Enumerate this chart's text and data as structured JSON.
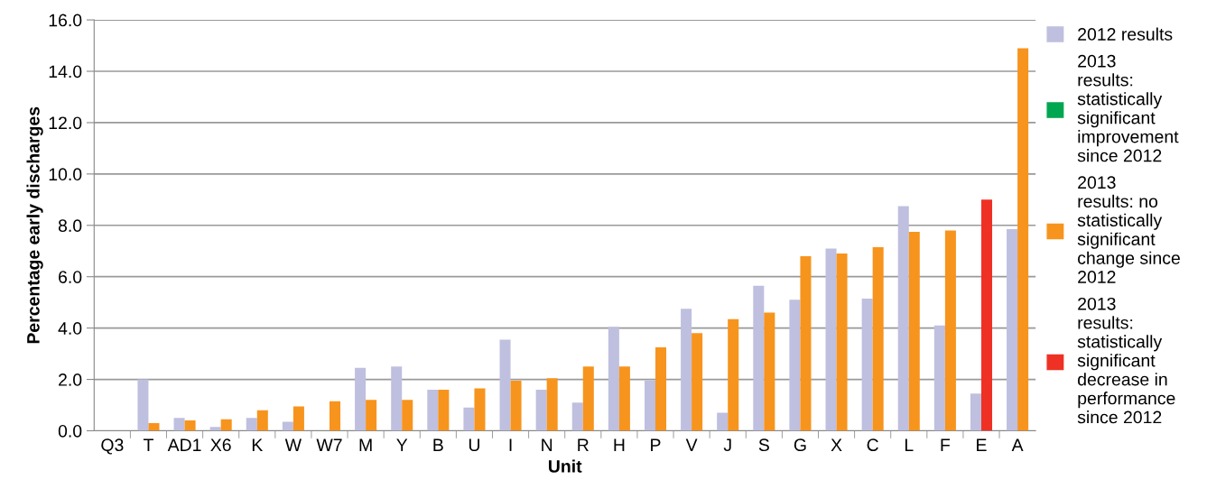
{
  "chart_data": {
    "type": "bar",
    "xlabel": "Unit",
    "ylabel": "Percentage early discharges",
    "categories": [
      "Q3",
      "T",
      "AD1",
      "X6",
      "K",
      "W",
      "W7",
      "M",
      "Y",
      "B",
      "U",
      "I",
      "N",
      "R",
      "H",
      "P",
      "V",
      "J",
      "S",
      "G",
      "X",
      "C",
      "L",
      "F",
      "E",
      "A"
    ],
    "series": [
      {
        "name": "2012 results",
        "color": "#bfbfdf",
        "values": [
          null,
          2.0,
          0.5,
          0.15,
          0.5,
          0.35,
          null,
          2.45,
          2.5,
          1.6,
          0.9,
          3.55,
          1.6,
          1.1,
          4.05,
          1.95,
          4.75,
          0.7,
          5.65,
          5.1,
          7.1,
          5.15,
          8.75,
          4.1,
          1.45,
          7.85
        ]
      },
      {
        "name": "2013 results: statistically significant improvement since 2012",
        "color": "#00a650",
        "values": [
          null,
          null,
          null,
          null,
          null,
          null,
          null,
          null,
          null,
          null,
          null,
          null,
          null,
          null,
          null,
          null,
          null,
          null,
          null,
          null,
          null,
          null,
          null,
          null,
          null,
          null
        ]
      },
      {
        "name": "2013 results: no statistically significant change since 2012",
        "color": "#f7941d",
        "values": [
          null,
          0.3,
          0.4,
          0.45,
          0.8,
          0.95,
          1.15,
          1.2,
          1.2,
          1.6,
          1.65,
          1.95,
          2.05,
          2.5,
          2.5,
          3.25,
          3.8,
          4.35,
          4.6,
          6.8,
          6.9,
          7.15,
          7.75,
          7.8,
          null,
          14.9
        ]
      },
      {
        "name": "2013 results: statistically significant decrease in performance since 2012",
        "color": "#ee3124",
        "values": [
          null,
          null,
          null,
          null,
          null,
          null,
          null,
          null,
          null,
          null,
          null,
          null,
          null,
          null,
          null,
          null,
          null,
          null,
          null,
          null,
          null,
          null,
          null,
          null,
          9.0,
          null
        ]
      }
    ],
    "ylim": [
      0,
      16
    ],
    "yticks": [
      {
        "value": 0,
        "label": "0.0"
      },
      {
        "value": 2,
        "label": "2.0"
      },
      {
        "value": 4,
        "label": "4.0"
      },
      {
        "value": 6,
        "label": "6.0"
      },
      {
        "value": 8,
        "label": "8.0"
      },
      {
        "value": 10,
        "label": "10.0"
      },
      {
        "value": 12,
        "label": "12.0"
      },
      {
        "value": 14,
        "label": "14.0"
      },
      {
        "value": 16,
        "label": "16.0"
      }
    ],
    "grid": "y",
    "legend": "right"
  }
}
